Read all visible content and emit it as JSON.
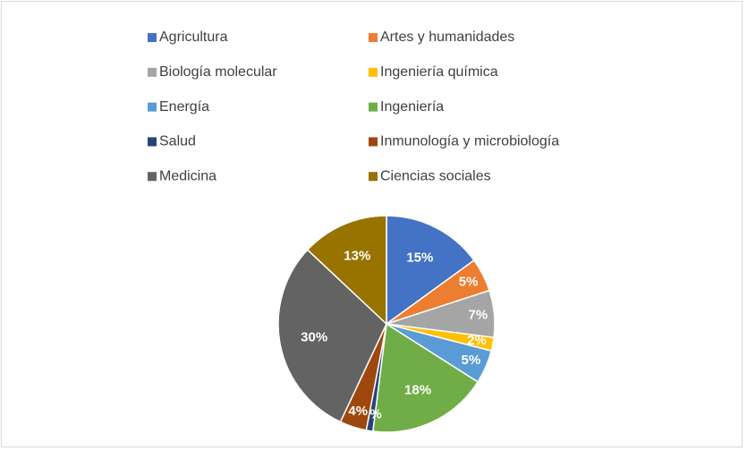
{
  "chart_data": {
    "type": "pie",
    "categories": [
      "Agricultura",
      "Artes y humanidades",
      "Biología molecular",
      "Ingeniería química",
      "Energía",
      "Ingeniería",
      "Salud",
      "Inmunología y microbiología",
      "Medicina",
      "Ciencias sociales"
    ],
    "values": [
      15,
      5,
      7,
      2,
      5,
      18,
      1,
      4,
      30,
      13
    ],
    "value_labels": [
      "15%",
      "5%",
      "7%",
      "2%",
      "5%",
      "18%",
      "1%",
      "4%",
      "30%",
      "13%"
    ],
    "colors": [
      "#4472c4",
      "#ed7d31",
      "#a5a5a5",
      "#ffc000",
      "#5b9bd5",
      "#70ad47",
      "#264478",
      "#9e480e",
      "#636363",
      "#997300"
    ],
    "legend": "top"
  }
}
